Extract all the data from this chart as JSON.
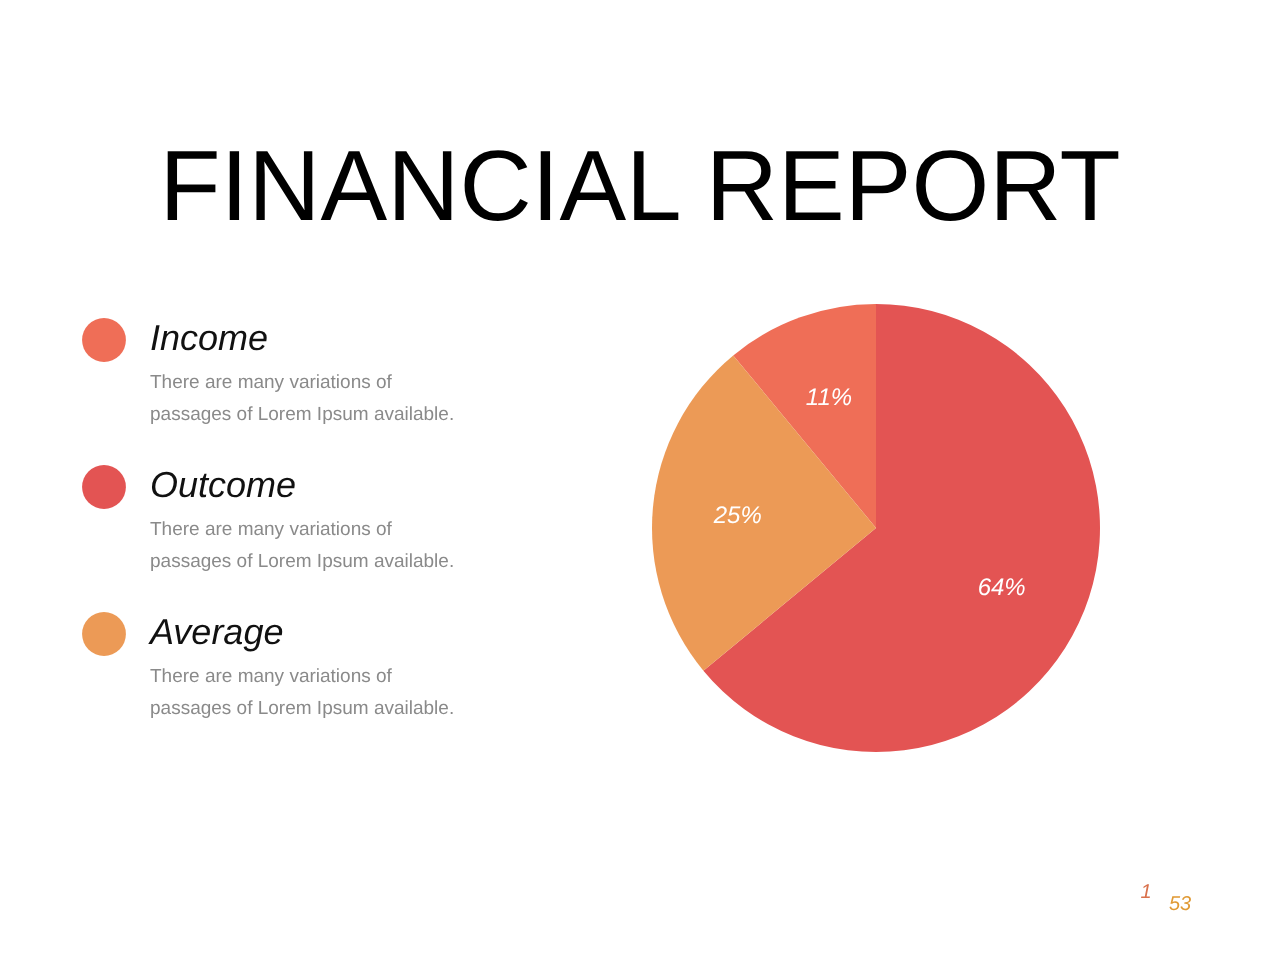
{
  "chart_data": {
    "type": "pie",
    "title": "FINANCIAL REPORT",
    "categories": [
      "Income",
      "Outcome",
      "Average"
    ],
    "values": [
      11,
      64,
      25
    ],
    "colors": [
      "#ef6e57",
      "#e35453",
      "#ec9a56"
    ],
    "value_labels": [
      "11%",
      "64%",
      "25%"
    ],
    "legend": "left",
    "annotations": [
      "There are many variations of\npassages of Lorem Ipsum available.",
      "There are many variations of\npassages of Lorem Ipsum available.",
      "There are many variations of\npassages of Lorem Ipsum available.",
      "1",
      "53"
    ]
  }
}
